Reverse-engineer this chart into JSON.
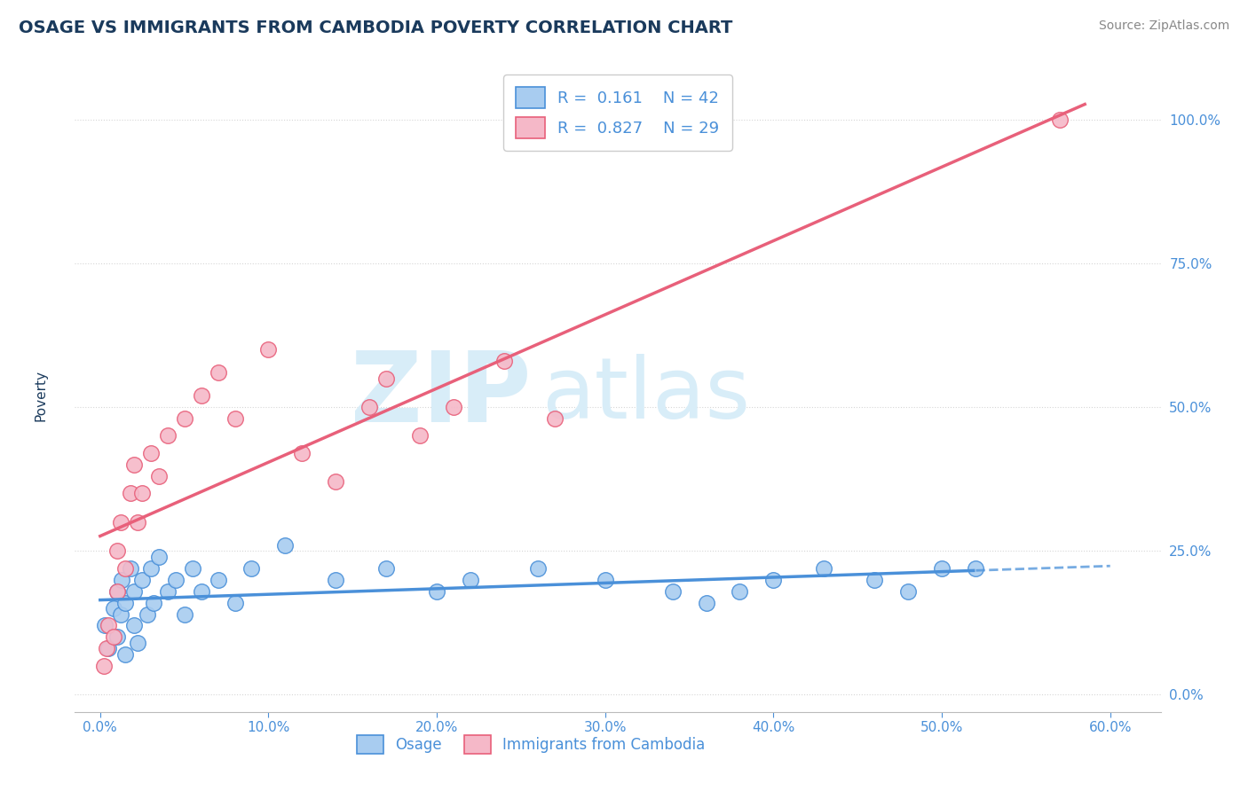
{
  "title": "OSAGE VS IMMIGRANTS FROM CAMBODIA POVERTY CORRELATION CHART",
  "source_text": "Source: ZipAtlas.com",
  "ylabel_label": "Poverty",
  "x_tick_labels": [
    "0.0%",
    "10.0%",
    "20.0%",
    "30.0%",
    "40.0%",
    "50.0%",
    "60.0%"
  ],
  "x_tick_values": [
    0.0,
    10.0,
    20.0,
    30.0,
    40.0,
    50.0,
    60.0
  ],
  "y_tick_labels": [
    "0.0%",
    "25.0%",
    "50.0%",
    "75.0%",
    "100.0%"
  ],
  "y_tick_values": [
    0.0,
    25.0,
    50.0,
    75.0,
    100.0
  ],
  "xlim": [
    -1.5,
    63
  ],
  "ylim": [
    -3,
    107
  ],
  "legend_R1": "0.161",
  "legend_N1": "42",
  "legend_R2": "0.827",
  "legend_N2": "29",
  "color_blue": "#A8CCF0",
  "color_pink": "#F5B8C8",
  "color_blue_line": "#4A90D9",
  "color_pink_line": "#E8607A",
  "color_title": "#1A3A5C",
  "color_watermark": "#D8EDF8",
  "watermark_ZIP": "ZIP",
  "watermark_atlas": "atlas",
  "background_color": "#FFFFFF",
  "grid_color": "#CCCCCC",
  "blue_scatter_x": [
    0.3,
    0.5,
    0.8,
    1.0,
    1.0,
    1.2,
    1.3,
    1.5,
    1.5,
    1.8,
    2.0,
    2.0,
    2.2,
    2.5,
    2.8,
    3.0,
    3.2,
    3.5,
    4.0,
    4.5,
    5.0,
    5.5,
    6.0,
    7.0,
    8.0,
    9.0,
    11.0,
    14.0,
    17.0,
    20.0,
    22.0,
    26.0,
    30.0,
    34.0,
    36.0,
    38.0,
    40.0,
    43.0,
    46.0,
    48.0,
    50.0,
    52.0
  ],
  "blue_scatter_y": [
    12.0,
    8.0,
    15.0,
    18.0,
    10.0,
    14.0,
    20.0,
    16.0,
    7.0,
    22.0,
    12.0,
    18.0,
    9.0,
    20.0,
    14.0,
    22.0,
    16.0,
    24.0,
    18.0,
    20.0,
    14.0,
    22.0,
    18.0,
    20.0,
    16.0,
    22.0,
    26.0,
    20.0,
    22.0,
    18.0,
    20.0,
    22.0,
    20.0,
    18.0,
    16.0,
    18.0,
    20.0,
    22.0,
    20.0,
    18.0,
    22.0,
    22.0
  ],
  "pink_scatter_x": [
    0.2,
    0.4,
    0.5,
    0.8,
    1.0,
    1.0,
    1.2,
    1.5,
    1.8,
    2.0,
    2.2,
    2.5,
    3.0,
    3.5,
    4.0,
    5.0,
    6.0,
    7.0,
    8.0,
    10.0,
    12.0,
    14.0,
    16.0,
    17.0,
    19.0,
    21.0,
    24.0,
    27.0,
    57.0
  ],
  "pink_scatter_y": [
    5.0,
    8.0,
    12.0,
    10.0,
    18.0,
    25.0,
    30.0,
    22.0,
    35.0,
    40.0,
    30.0,
    35.0,
    42.0,
    38.0,
    45.0,
    48.0,
    52.0,
    56.0,
    48.0,
    60.0,
    42.0,
    37.0,
    50.0,
    55.0,
    45.0,
    50.0,
    58.0,
    48.0,
    100.0
  ]
}
